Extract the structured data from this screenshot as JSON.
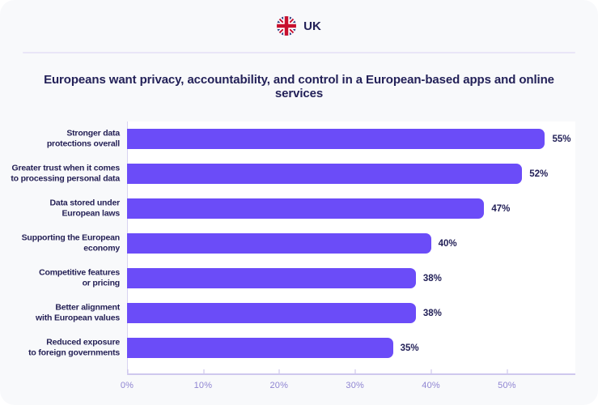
{
  "header": {
    "country_label": "UK",
    "flag_icon": "uk-flag"
  },
  "title": "Europeans want privacy, accountability, and control in a European-based apps and online services",
  "chart_data": {
    "type": "bar",
    "orientation": "horizontal",
    "title": "Europeans want privacy, accountability, and control in a European-based apps and online services",
    "categories": [
      "Stronger data\nprotections overall",
      "Greater trust when it comes\nto processing personal data",
      "Data stored under\nEuropean laws",
      "Supporting the European\neconomy",
      "Competitive features\nor pricing",
      "Better alignment\nwith European values",
      "Reduced exposure\nto foreign governments"
    ],
    "values": [
      55,
      52,
      47,
      40,
      38,
      38,
      35
    ],
    "value_labels": [
      "55%",
      "52%",
      "47%",
      "40%",
      "38%",
      "38%",
      "35%"
    ],
    "x_ticks": [
      {
        "value": 0,
        "label": "0%"
      },
      {
        "value": 10,
        "label": "10%"
      },
      {
        "value": 20,
        "label": "20%"
      },
      {
        "value": 30,
        "label": "30%"
      },
      {
        "value": 40,
        "label": "40%"
      },
      {
        "value": 50,
        "label": "50%"
      }
    ],
    "xlim": [
      0,
      59
    ],
    "xlabel": "",
    "ylabel": "",
    "grid": false,
    "legend": false,
    "bar_color": "#6b4cf8",
    "plot_background": "#ffffff",
    "value_label_position": "end-of-bar"
  },
  "colors": {
    "card_background": "#f8f9fb",
    "text_dark": "#232158",
    "axis_line": "#cfc8ee",
    "tick_label": "#8f85d2",
    "divider": "#e9e6f7",
    "flag_blue": "#26357c",
    "flag_red": "#c8102e"
  }
}
